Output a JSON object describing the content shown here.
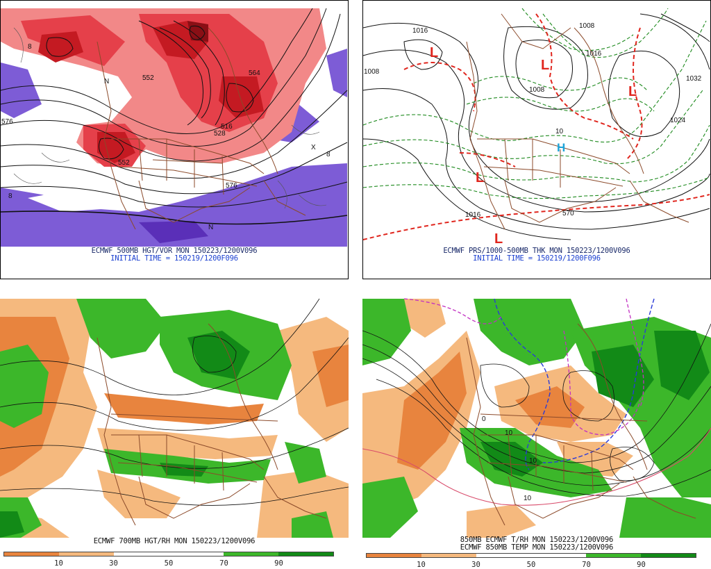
{
  "panels": {
    "tl": {
      "title": "ECMWF 500MB HGT/VOR MON 150223/1200V096",
      "subtitle": "INITIAL TIME = 150219/1200F096",
      "contour_labels": [
        "552",
        "552",
        "576",
        "576",
        "564",
        "516",
        "528",
        "8",
        "8",
        "8",
        "N",
        "N",
        "X"
      ]
    },
    "tr": {
      "title": "ECMWF PRS/1000-500MB THK MON 150223/1200V096",
      "subtitle": "INITIAL TIME = 150219/1200F096",
      "contour_labels": [
        "1016",
        "1008",
        "1008",
        "1016",
        "1024",
        "1032",
        "1016",
        "570",
        "10",
        "1008",
        "L",
        "L",
        "L",
        "L",
        "L",
        "H"
      ]
    },
    "bl": {
      "title": "ECMWF 700MB HGT/RH MON 150223/1200V096",
      "colorbar_ticks": [
        "10",
        "30",
        "50",
        "70",
        "90"
      ]
    },
    "br": {
      "title": "850MB ECMWF T/RH MON 150223/1200V096",
      "title2": "ECMWF 850MB TEMP MON 150223/1200V096",
      "contour_labels": [
        "10",
        "10",
        "10",
        "0"
      ],
      "colorbar_ticks": [
        "10",
        "30",
        "50",
        "70",
        "90"
      ]
    }
  },
  "colors": {
    "vort_dark": "#c41a22",
    "vort_mid": "#e5404a",
    "vort_light": "#f28888",
    "vort_neg": "#7d5cd6",
    "rh_dry_dark": "#e8843e",
    "rh_dry_light": "#f5b97e",
    "rh_moist": "#3cb72a",
    "rh_moist_dark": "#128a17",
    "border": "#8b4a2a",
    "thickness_red": "#e0261e",
    "thickness_green": "#1e8a1e",
    "low_symbol": "#e0261e",
    "high_symbol": "#1fa4d8"
  }
}
